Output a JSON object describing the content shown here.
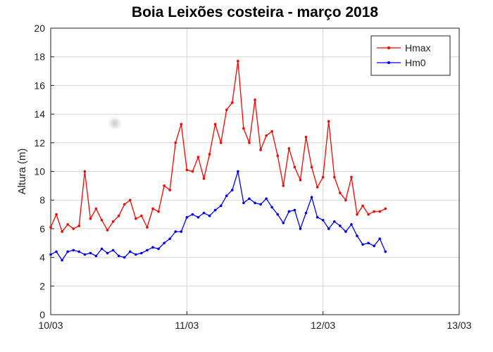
{
  "chart_data": {
    "type": "line",
    "title": "Boia Leixões costeira - março 2018",
    "xlabel": "",
    "ylabel": "Altura (m)",
    "ylim": [
      0,
      20
    ],
    "yticks": [
      0,
      2,
      4,
      6,
      8,
      10,
      12,
      14,
      16,
      18,
      20
    ],
    "xlim": [
      "2018-03-10T00:00",
      "2018-03-13T00:00"
    ],
    "xticks": [
      "10/03",
      "11/03",
      "12/03",
      "13/03"
    ],
    "grid": true,
    "legend": "top-right",
    "x_start": "2018-03-10T00:00",
    "x_step_hours": 1,
    "series": [
      {
        "name": "Hmax",
        "color": "#ff0000",
        "values": [
          6.1,
          7.0,
          5.8,
          6.3,
          6.0,
          6.2,
          10.0,
          6.7,
          7.4,
          6.6,
          5.9,
          6.5,
          6.9,
          7.7,
          8.0,
          6.7,
          6.9,
          6.1,
          7.4,
          7.2,
          9.0,
          8.7,
          12.0,
          13.3,
          10.1,
          10.0,
          11.0,
          9.5,
          11.2,
          13.3,
          12.0,
          14.3,
          14.8,
          17.7,
          13.0,
          12.0,
          15.0,
          11.5,
          12.5,
          12.8,
          11.1,
          9.0,
          11.6,
          10.3,
          9.4,
          12.4,
          10.3,
          8.9,
          9.6,
          13.5,
          9.6,
          8.5,
          8.0,
          9.6,
          7.0,
          7.6,
          7.0,
          7.2,
          7.2,
          7.4
        ]
      },
      {
        "name": "Hm0",
        "color": "#0000ff",
        "values": [
          4.2,
          4.4,
          3.8,
          4.4,
          4.5,
          4.4,
          4.2,
          4.3,
          4.1,
          4.6,
          4.3,
          4.5,
          4.1,
          4.0,
          4.4,
          4.2,
          4.3,
          4.5,
          4.7,
          4.6,
          5.0,
          5.3,
          5.8,
          5.8,
          6.8,
          7.0,
          6.8,
          7.1,
          6.9,
          7.3,
          7.6,
          8.3,
          8.7,
          10.0,
          7.8,
          8.1,
          7.8,
          7.7,
          8.1,
          7.5,
          7.0,
          6.4,
          7.2,
          7.3,
          6.0,
          7.1,
          8.2,
          6.8,
          6.6,
          6.0,
          6.5,
          6.2,
          5.8,
          6.3,
          5.5,
          4.9,
          5.0,
          4.8,
          5.3,
          4.4
        ]
      }
    ]
  }
}
